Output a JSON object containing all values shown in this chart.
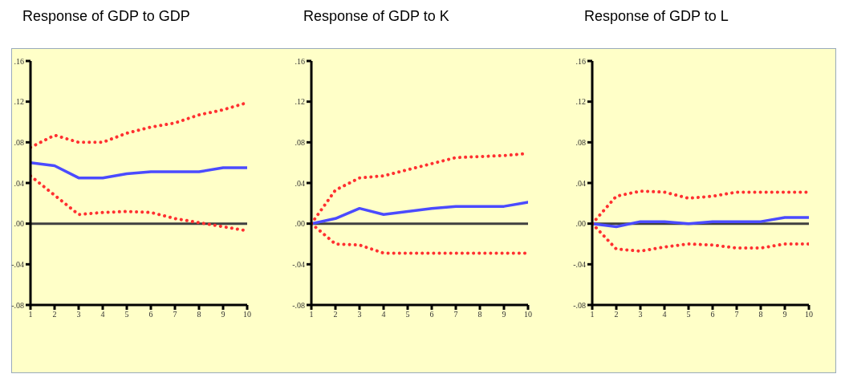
{
  "chart_data": [
    {
      "type": "line",
      "title": "Response of GDP to GDP",
      "x": [
        1,
        2,
        3,
        4,
        5,
        6,
        7,
        8,
        9,
        10
      ],
      "xlim": [
        1,
        10
      ],
      "xticks": [
        1,
        2,
        3,
        4,
        5,
        6,
        7,
        8,
        9,
        10
      ],
      "ylim": [
        -0.08,
        0.16
      ],
      "yticks": [
        {
          "value": 0.16,
          "label": ".16"
        },
        {
          "value": 0.12,
          "label": ".12"
        },
        {
          "value": 0.08,
          "label": ".08"
        },
        {
          "value": 0.04,
          "label": ".04"
        },
        {
          "value": 0,
          "label": ".00"
        },
        {
          "value": -0.04,
          "label": "-.04"
        },
        {
          "value": -0.08,
          "label": "-.08"
        }
      ],
      "grid": false,
      "legend": false,
      "marker": "none",
      "ref_lines": [
        {
          "axis": "y",
          "value": 0,
          "color": "#404040"
        }
      ],
      "series": [
        {
          "color": "#4b4bff",
          "line_style": "solid",
          "values": [
            0.06,
            0.057,
            0.045,
            0.045,
            0.049,
            0.051,
            0.051,
            0.051,
            0.055,
            0.055
          ]
        },
        {
          "color": "#ff3030",
          "line_style": "dotted",
          "values": [
            0.075,
            0.087,
            0.08,
            0.08,
            0.089,
            0.095,
            0.099,
            0.107,
            0.112,
            0.119
          ]
        },
        {
          "color": "#ff3030",
          "line_style": "dotted",
          "values": [
            0.047,
            0.028,
            0.009,
            0.011,
            0.012,
            0.011,
            0.005,
            0.001,
            -0.003,
            -0.007
          ]
        }
      ]
    },
    {
      "type": "line",
      "title": "Response of GDP to K",
      "x": [
        1,
        2,
        3,
        4,
        5,
        6,
        7,
        8,
        9,
        10
      ],
      "xlim": [
        1,
        10
      ],
      "xticks": [
        1,
        2,
        3,
        4,
        5,
        6,
        7,
        8,
        9,
        10
      ],
      "ylim": [
        -0.08,
        0.16
      ],
      "yticks": [
        {
          "value": 0.16,
          "label": ".16"
        },
        {
          "value": 0.12,
          "label": ".12"
        },
        {
          "value": 0.08,
          "label": ".08"
        },
        {
          "value": 0.04,
          "label": ".04"
        },
        {
          "value": 0,
          "label": ".00"
        },
        {
          "value": -0.04,
          "label": "-.04"
        },
        {
          "value": -0.08,
          "label": "-.08"
        }
      ],
      "grid": false,
      "legend": false,
      "marker": "none",
      "ref_lines": [
        {
          "axis": "y",
          "value": 0,
          "color": "#404040"
        }
      ],
      "series": [
        {
          "color": "#4b4bff",
          "line_style": "solid",
          "values": [
            0,
            0.005,
            0.015,
            0.009,
            0.012,
            0.015,
            0.017,
            0.017,
            0.017,
            0.021
          ]
        },
        {
          "color": "#ff3030",
          "line_style": "dotted",
          "values": [
            0,
            0.033,
            0.045,
            0.047,
            0.053,
            0.059,
            0.065,
            0.066,
            0.067,
            0.069
          ]
        },
        {
          "color": "#ff3030",
          "line_style": "dotted",
          "values": [
            0,
            -0.02,
            -0.021,
            -0.029,
            -0.029,
            -0.029,
            -0.029,
            -0.029,
            -0.029,
            -0.029
          ]
        }
      ]
    },
    {
      "type": "line",
      "title": "Response of GDP to L",
      "x": [
        1,
        2,
        3,
        4,
        5,
        6,
        7,
        8,
        9,
        10
      ],
      "xlim": [
        1,
        10
      ],
      "xticks": [
        1,
        2,
        3,
        4,
        5,
        6,
        7,
        8,
        9,
        10
      ],
      "ylim": [
        -0.08,
        0.16
      ],
      "yticks": [
        {
          "value": 0.16,
          "label": ".16"
        },
        {
          "value": 0.12,
          "label": ".12"
        },
        {
          "value": 0.08,
          "label": ".08"
        },
        {
          "value": 0.04,
          "label": ".04"
        },
        {
          "value": 0,
          "label": ".00"
        },
        {
          "value": -0.04,
          "label": "-.04"
        },
        {
          "value": -0.08,
          "label": "-.08"
        }
      ],
      "grid": false,
      "legend": false,
      "marker": "none",
      "ref_lines": [
        {
          "axis": "y",
          "value": 0,
          "color": "#404040"
        }
      ],
      "series": [
        {
          "color": "#4b4bff",
          "line_style": "solid",
          "values": [
            0,
            -0.003,
            0.002,
            0.002,
            0,
            0.002,
            0.002,
            0.002,
            0.006,
            0.006
          ]
        },
        {
          "color": "#ff3030",
          "line_style": "dotted",
          "values": [
            0,
            0.027,
            0.032,
            0.031,
            0.025,
            0.027,
            0.031,
            0.031,
            0.031,
            0.031
          ]
        },
        {
          "color": "#ff3030",
          "line_style": "dotted",
          "values": [
            0,
            -0.025,
            -0.027,
            -0.023,
            -0.02,
            -0.021,
            -0.024,
            -0.024,
            -0.02,
            -0.02
          ]
        }
      ]
    }
  ]
}
